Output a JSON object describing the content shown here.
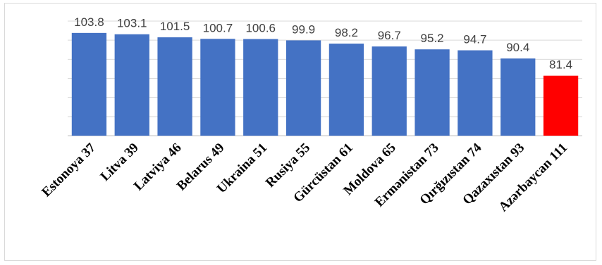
{
  "chart_data": {
    "type": "bar",
    "categories": [
      "Estonoya 37",
      "Litva 39",
      "Latviya 46",
      "Belarus 49",
      "Ukraina 51",
      "Rusiya 55",
      "Gürcüstan 61",
      "Moldova 65",
      "Ermənistan 73",
      "Qırğızıstan 74",
      "Qazaxıstan 93",
      "Azərbaycan 111"
    ],
    "values": [
      103.8,
      103.1,
      101.5,
      100.7,
      100.6,
      99.9,
      98.2,
      96.7,
      95.2,
      94.7,
      90.4,
      81.4
    ],
    "value_labels": [
      "103.8",
      "103.1",
      "101.5",
      "100.7",
      "100.6",
      "99.9",
      "98.2",
      "96.7",
      "95.2",
      "94.7",
      "90.4",
      "81.4"
    ],
    "title": "",
    "xlabel": "",
    "ylabel": "",
    "ylim": [
      50,
      110
    ],
    "grid": true,
    "legend": "none",
    "bar_colors": [
      "#4472c4",
      "#4472c4",
      "#4472c4",
      "#4472c4",
      "#4472c4",
      "#4472c4",
      "#4472c4",
      "#4472c4",
      "#4472c4",
      "#4472c4",
      "#4472c4",
      "#ff0000"
    ],
    "gridline_color": "#d9d9d9"
  }
}
